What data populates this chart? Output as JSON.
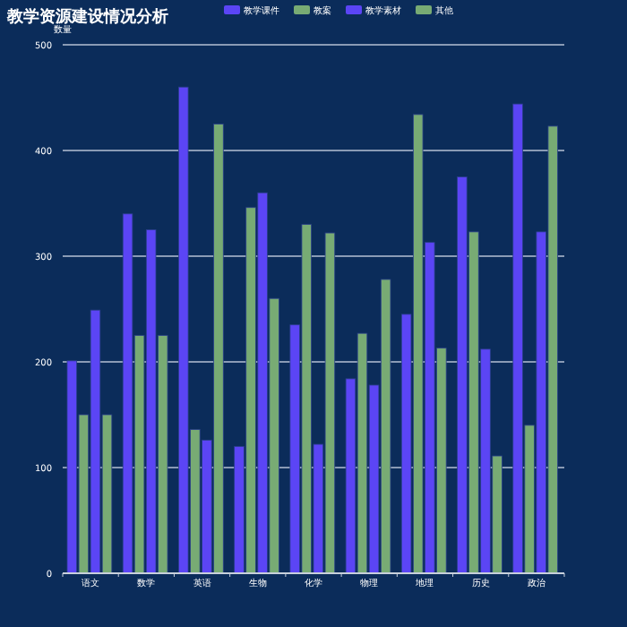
{
  "chart_data": {
    "type": "bar",
    "title": "教学资源建设情况分析",
    "ylabel": "数量",
    "categories": [
      "语文",
      "数学",
      "英语",
      "生物",
      "化学",
      "物理",
      "地理",
      "历史",
      "政治"
    ],
    "series": [
      {
        "name": "教学课件",
        "color": "#5b45f5",
        "values": [
          201,
          340,
          460,
          120,
          235,
          184,
          245,
          375,
          444
        ]
      },
      {
        "name": "教案",
        "color": "#78ab74",
        "values": [
          150,
          225,
          136,
          346,
          330,
          227,
          434,
          323,
          140
        ]
      },
      {
        "name": "教学素材",
        "color": "#5b45f5",
        "values": [
          249,
          325,
          126,
          360,
          122,
          178,
          313,
          212,
          323
        ]
      },
      {
        "name": "其他",
        "color": "#78ab74",
        "values": [
          150,
          225,
          425,
          260,
          322,
          278,
          213,
          111,
          423
        ]
      }
    ],
    "ylim": [
      0,
      500
    ],
    "yticks": [
      0,
      100,
      200,
      300,
      400,
      500
    ],
    "grid": "y",
    "legend": "top"
  }
}
